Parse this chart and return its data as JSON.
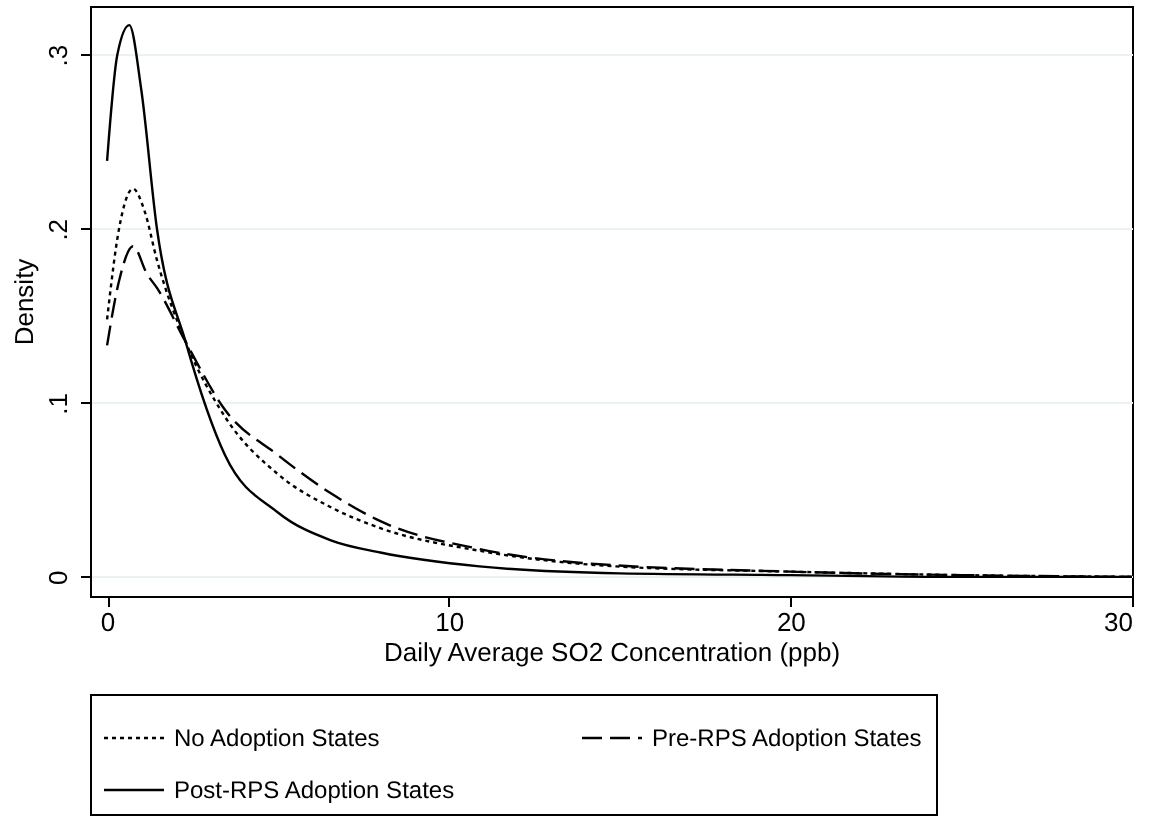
{
  "chart_data": {
    "type": "line",
    "xlabel": "Daily Average SO2 Concentration (ppb)",
    "ylabel": "Density",
    "xlim": [
      -0.5,
      30
    ],
    "xticks": [
      0,
      10,
      20,
      30
    ],
    "ylim": [
      -0.011,
      0.328
    ],
    "yticks": [
      0,
      {
        "value": 0.1,
        "label": ".1"
      },
      {
        "value": 0.2,
        "label": ".2"
      },
      {
        "value": 0.3,
        "label": ".3"
      }
    ],
    "grid": "y",
    "legend": "bottom",
    "series": [
      {
        "name": "No Adoption States",
        "color": "#000000",
        "line_style": "dotted",
        "x": [
          0,
          0.35,
          0.76,
          1.1,
          1.46,
          2.3,
          3.45,
          5.0,
          6.55,
          8.0,
          10.9,
          14.9,
          20,
          25,
          30
        ],
        "values": [
          0.148,
          0.2,
          0.223,
          0.21,
          0.182,
          0.135,
          0.092,
          0.059,
          0.04,
          0.028,
          0.015,
          0.006,
          0.003,
          0.001,
          0.0
        ]
      },
      {
        "name": "Pre-RPS Adoption States",
        "color": "#000000",
        "line_style": "dashed",
        "x": [
          0,
          0.35,
          0.76,
          1.17,
          1.46,
          2.3,
          3.45,
          5.0,
          6.55,
          8.0,
          10.9,
          13.9,
          20,
          25,
          30
        ],
        "values": [
          0.133,
          0.17,
          0.19,
          0.174,
          0.166,
          0.135,
          0.096,
          0.07,
          0.048,
          0.032,
          0.016,
          0.008,
          0.003,
          0.001,
          0.0
        ]
      },
      {
        "name": "Post-RPS Adoption States",
        "color": "#000000",
        "line_style": "solid",
        "x": [
          0,
          0.3,
          0.65,
          1.0,
          1.46,
          2.3,
          3.45,
          5.0,
          6.55,
          8.0,
          10.9,
          15,
          20,
          25,
          30
        ],
        "values": [
          0.239,
          0.3,
          0.317,
          0.28,
          0.2,
          0.135,
          0.07,
          0.037,
          0.021,
          0.014,
          0.006,
          0.002,
          0.001,
          0.0,
          0.0
        ]
      }
    ]
  }
}
